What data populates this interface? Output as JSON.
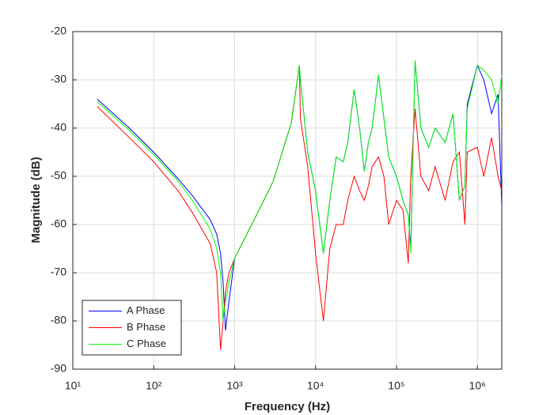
{
  "chart_data": {
    "type": "line",
    "xlabel": "Frequency (Hz)",
    "ylabel": "Magnitude (dB)",
    "xscale": "log",
    "grid": true,
    "legend": "lower left",
    "xlim": [
      10,
      2000000
    ],
    "ylim": [
      -90,
      -20
    ],
    "xticks": [
      {
        "value": 10,
        "label": "10¹"
      },
      {
        "value": 100,
        "label": "10²"
      },
      {
        "value": 1000,
        "label": "10³"
      },
      {
        "value": 10000,
        "label": "10⁴"
      },
      {
        "value": 100000,
        "label": "10⁵"
      },
      {
        "value": 1000000,
        "label": "10⁶"
      }
    ],
    "yticks": [
      -90,
      -80,
      -70,
      -60,
      -50,
      -40,
      -30,
      -20
    ],
    "x": [
      20,
      50,
      100,
      200,
      300,
      500,
      600,
      670,
      720,
      770,
      850,
      1000,
      2000,
      3000,
      5000,
      6300,
      6500,
      8000,
      10000,
      12500,
      15000,
      18000,
      22000,
      25000,
      30000,
      35000,
      40000,
      45000,
      50000,
      60000,
      70000,
      80000,
      100000,
      120000,
      140000,
      150000,
      170000,
      200000,
      250000,
      300000,
      400000,
      500000,
      600000,
      700000,
      750000,
      1000000,
      1200000,
      1500000,
      1800000,
      2000000
    ],
    "series": [
      {
        "name": "A Phase",
        "color": "#0000ff",
        "values": [
          -34,
          -40,
          -45,
          -50.5,
          -54,
          -59,
          -62,
          -66,
          -72,
          -82,
          -76,
          -67,
          -57,
          -51,
          -39,
          -27,
          -30,
          -45,
          -53,
          -66,
          -55,
          -46,
          -47,
          -43,
          -32,
          -40,
          -49,
          -43,
          -40,
          -29,
          -38,
          -46,
          -50,
          -55,
          -58,
          -65,
          -26,
          -40,
          -44,
          -40,
          -43,
          -37,
          -55,
          -52,
          -35,
          -27,
          -30,
          -37,
          -33,
          -56
        ]
      },
      {
        "name": "B Phase",
        "color": "#ff0000",
        "values": [
          -35.5,
          -42,
          -47,
          -53,
          -57.5,
          -64,
          -70,
          -86,
          -80,
          -74,
          -70,
          -67,
          -57,
          -51,
          -39,
          -27,
          -38,
          -48,
          -66,
          -80,
          -65,
          -60,
          -60,
          -55,
          -50,
          -53,
          -55,
          -52,
          -48,
          -46,
          -50,
          -60,
          -55,
          -57,
          -68,
          -50,
          -36,
          -50,
          -53,
          -48,
          -55,
          -47,
          -45,
          -60,
          -45,
          -44,
          -50,
          -42,
          -50,
          -53
        ]
      },
      {
        "name": "C Phase",
        "color": "#00ff00",
        "values": [
          -34.5,
          -40.5,
          -45.5,
          -51,
          -55,
          -61,
          -65,
          -70,
          -80,
          -76,
          -72,
          -67,
          -57,
          -51,
          -39,
          -27,
          -30,
          -45,
          -53,
          -66,
          -55,
          -46,
          -47,
          -43,
          -32,
          -40,
          -49,
          -43,
          -40,
          -29,
          -38,
          -46,
          -50,
          -55,
          -58,
          -66,
          -26,
          -40,
          -44,
          -40,
          -43,
          -37,
          -55,
          -52,
          -36,
          -27,
          -28,
          -30,
          -35,
          -29
        ]
      }
    ]
  }
}
